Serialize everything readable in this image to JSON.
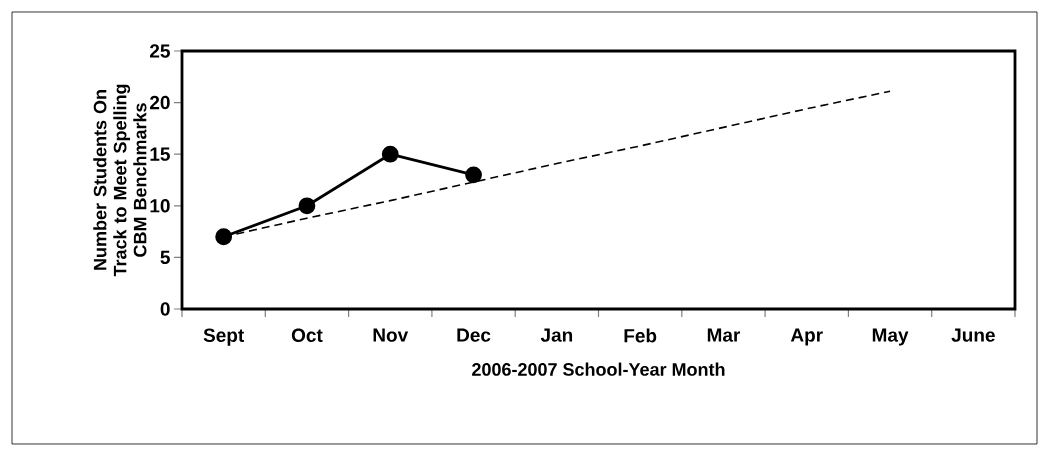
{
  "chart_data": {
    "type": "line",
    "xlabel": "2006-2007 School-Year Month",
    "ylabel": "Number Students On Track to Meet Spelling CBM Benchmarks",
    "categories": [
      "Sept",
      "Oct",
      "Nov",
      "Dec",
      "Jan",
      "Feb",
      "Mar",
      "Apr",
      "May",
      "June"
    ],
    "ylim": [
      0,
      25
    ],
    "yticks": [
      0,
      5,
      10,
      15,
      20,
      25
    ],
    "series": [
      {
        "color": "#000000",
        "values": [
          7,
          10,
          15,
          13,
          null,
          null,
          null,
          null,
          null,
          null
        ],
        "marker": "circle",
        "line_style": "solid"
      },
      {
        "type": "line",
        "color": "#000000",
        "values": [
          7,
          8.8,
          10.5,
          12.3,
          14.1,
          15.8,
          17.6,
          19.4,
          21.1,
          null
        ],
        "marker": "none",
        "line_style": "dashed"
      }
    ]
  }
}
